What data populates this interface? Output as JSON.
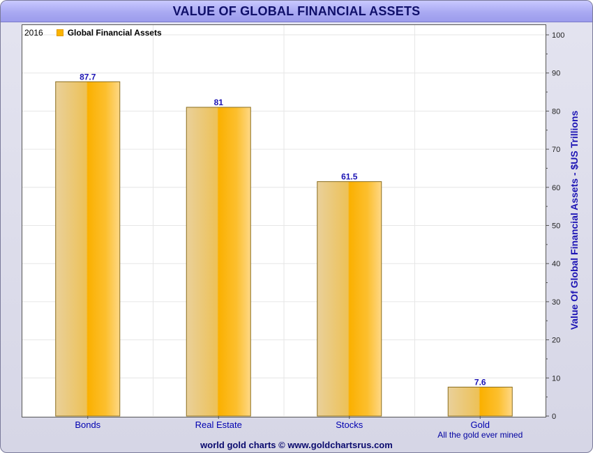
{
  "title": "VALUE OF GLOBAL FINANCIAL ASSETS",
  "legend": {
    "year": "2016",
    "series": "Global Financial Assets"
  },
  "footer": "world gold charts © www.goldchartsrus.com",
  "colors": {
    "bar": "#fbb400",
    "bar_light": "#e8cb86",
    "value_label": "#1c14b4",
    "category_label": "#0000b0",
    "title": "#10106a"
  },
  "chart_data": {
    "type": "bar",
    "title": "VALUE OF GLOBAL FINANCIAL ASSETS",
    "categories": [
      "Bonds",
      "Real Estate",
      "Stocks",
      "Gold"
    ],
    "category_sublabels": [
      "",
      "",
      "",
      "All the gold ever mined"
    ],
    "series": [
      {
        "name": "Global Financial Assets",
        "values": [
          87.7,
          81,
          61.5,
          7.6
        ]
      }
    ],
    "value_labels": [
      "87.7",
      "81",
      "61.5",
      "7.6"
    ],
    "ylabel": "Value Of Global Financial Assets - $US Trillions",
    "xlabel": "",
    "ylim": [
      0,
      100
    ],
    "yticks": [
      0,
      10,
      20,
      30,
      40,
      50,
      60,
      70,
      80,
      90,
      100
    ],
    "y_axis_side": "right",
    "grid": true,
    "legend_position": "top-left"
  }
}
